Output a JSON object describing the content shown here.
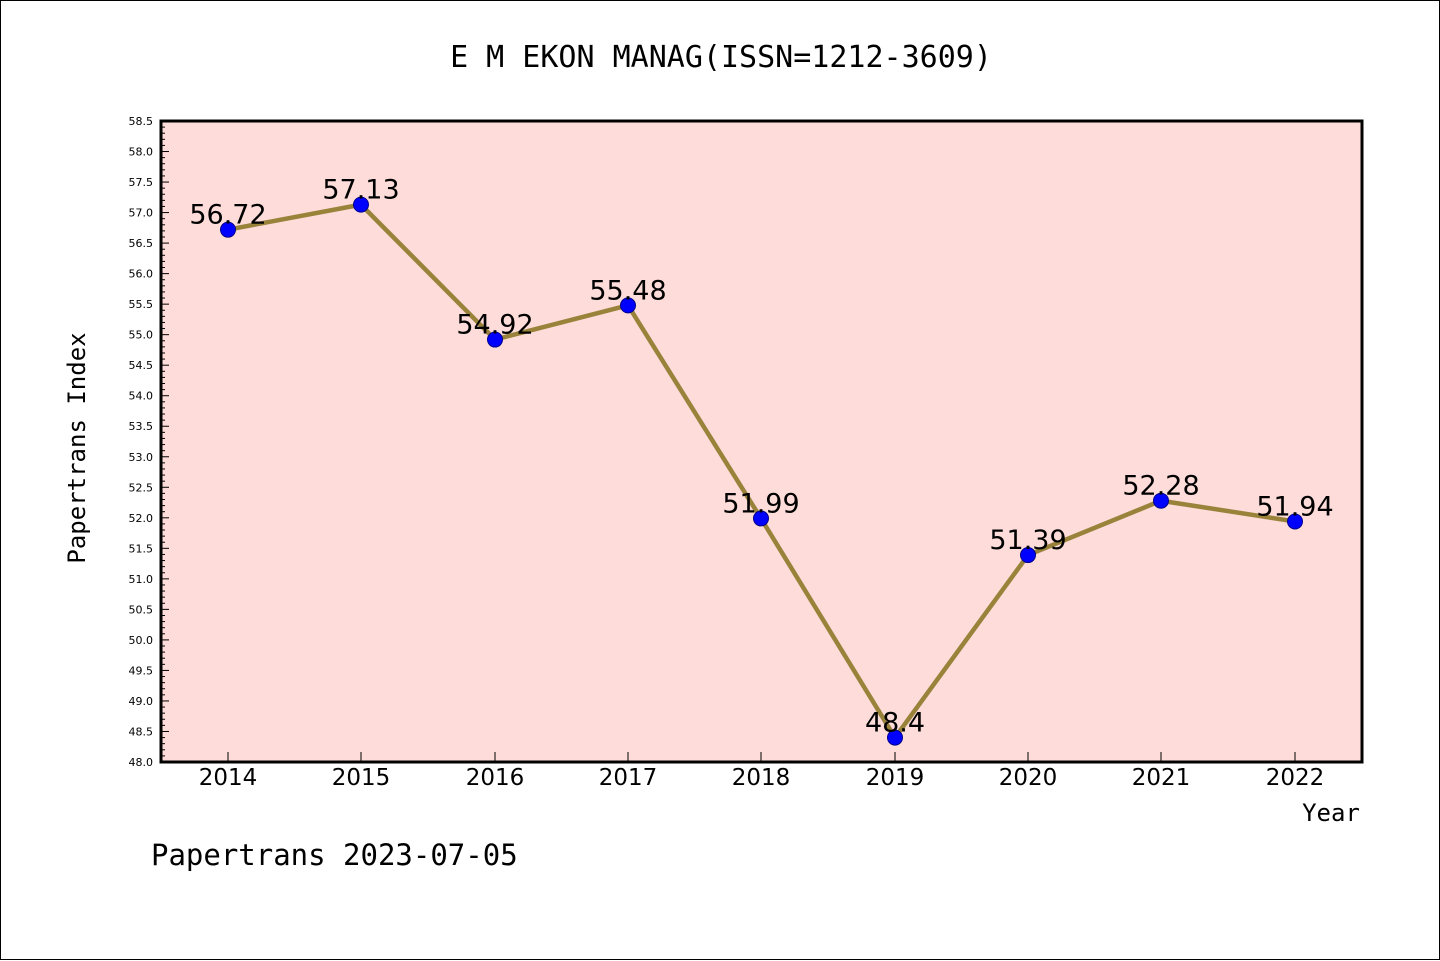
{
  "chart_data": {
    "type": "line",
    "title": "E M EKON MANAG(ISSN=1212-3609)",
    "xlabel": "Year",
    "ylabel": "Papertrans Index",
    "categories": [
      "2014",
      "2015",
      "2016",
      "2017",
      "2018",
      "2019",
      "2020",
      "2021",
      "2022"
    ],
    "series": [
      {
        "values": [
          56.72,
          57.13,
          54.92,
          55.48,
          51.99,
          48.4,
          51.39,
          52.28,
          51.94
        ],
        "labels": [
          "56.72",
          "57.13",
          "54.92",
          "55.48",
          "51.99",
          "48.4",
          "51.39",
          "52.28",
          "51.94"
        ]
      }
    ],
    "ylim": [
      48.0,
      58.5
    ],
    "yticks": [
      "48.0",
      "48.5",
      "49.0",
      "49.5",
      "50.0",
      "50.5",
      "51.0",
      "51.5",
      "52.0",
      "52.5",
      "53.0",
      "53.5",
      "54.0",
      "54.5",
      "55.0",
      "55.5",
      "56.0",
      "56.5",
      "57.0",
      "57.5",
      "58.0",
      "58.5"
    ],
    "yminor_step": 0.1,
    "grid": false,
    "colors": {
      "plot_background": "#fddcd9",
      "line": "#99823a",
      "marker": "#0000ff",
      "marker_edge": "#00008b",
      "axes": "#000000"
    }
  },
  "footer": "Papertrans 2023-07-05"
}
